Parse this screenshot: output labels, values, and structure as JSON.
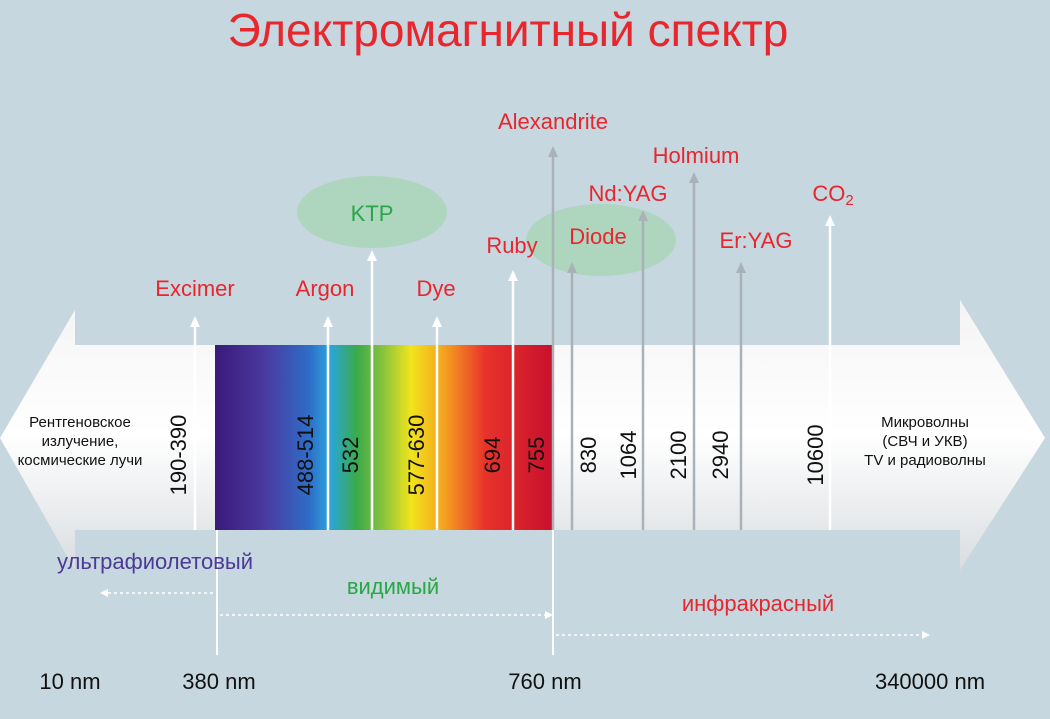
{
  "title": "Электромагнитный спектр",
  "lasers": [
    {
      "label": "Excimer",
      "wavelength": "190-390"
    },
    {
      "label": "Argon",
      "wavelength": "488-514"
    },
    {
      "label": "KTP",
      "wavelength": "532"
    },
    {
      "label": "Dye",
      "wavelength": "577-630"
    },
    {
      "label": "Ruby",
      "wavelength": "694"
    },
    {
      "label": "Alexandrite",
      "wavelength": "755"
    },
    {
      "label": "Diode",
      "wavelength": "830"
    },
    {
      "label": "Nd:YAG",
      "wavelength": "1064"
    },
    {
      "label": "Holmium",
      "wavelength": "2100"
    },
    {
      "label": "Er:YAG",
      "wavelength": "2940"
    },
    {
      "label": "CO",
      "subscript": "2",
      "wavelength": "10600"
    }
  ],
  "left_text": [
    "Рентгеновское",
    "излучение,",
    "космические лучи"
  ],
  "right_text": [
    "Микроволны",
    "(СВЧ и УКВ)",
    "TV и радиоволны"
  ],
  "regions": {
    "uv": "ультрафиолетовый",
    "visible": "видимый",
    "ir": "инфракрасный"
  },
  "scale": [
    "10 nm",
    "380 nm",
    "760 nm",
    "340000 nm"
  ]
}
